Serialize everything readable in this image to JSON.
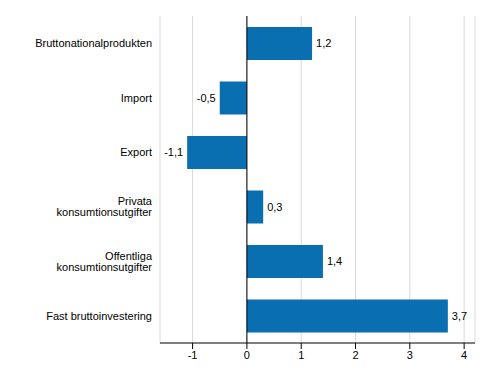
{
  "chart_data": {
    "type": "bar",
    "orientation": "horizontal",
    "categories": [
      "Bruttonationalprodukten",
      "Import",
      "Export",
      "Privata konsumtionsutgifter",
      "Offentliga konsumtionsutgifter",
      "Fast bruttoinvestering"
    ],
    "values": [
      1.2,
      -0.5,
      -1.1,
      0.3,
      1.4,
      3.7
    ],
    "value_labels": [
      "1,2",
      "-0,5",
      "-1,1",
      "0,3",
      "1,4",
      "3,7"
    ],
    "color": "#0a6fb0",
    "xlim": [
      -1.6,
      4.2
    ],
    "xticks": [
      -1,
      0,
      1,
      2,
      3,
      4
    ],
    "grid": true,
    "data_labels": true
  }
}
